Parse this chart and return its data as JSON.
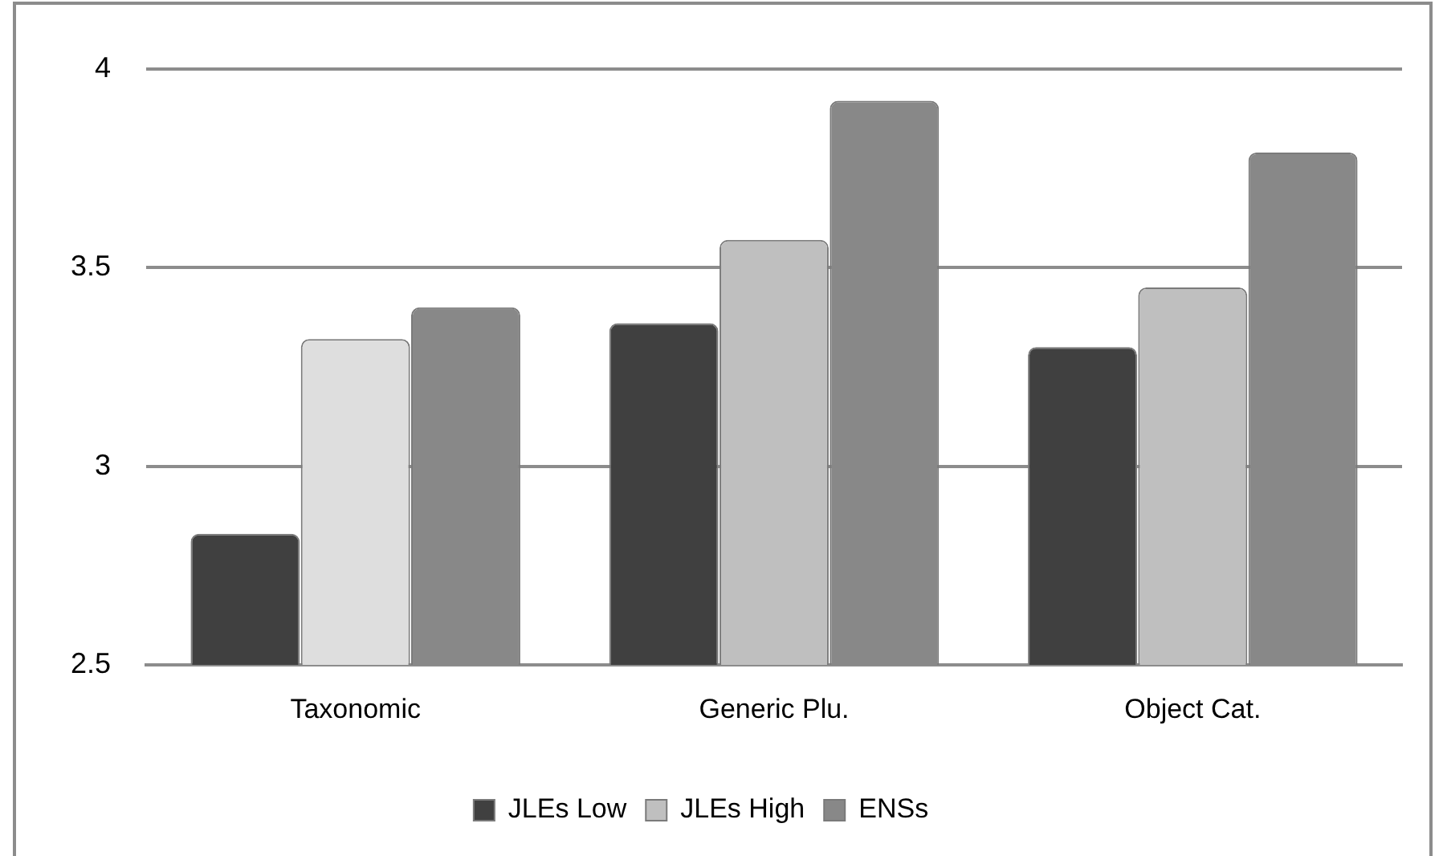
{
  "chart_data": {
    "type": "bar",
    "categories": [
      "Taxonomic",
      "Generic Plu.",
      "Object Cat."
    ],
    "series": [
      {
        "name": "JLEs Low",
        "color": "#404040",
        "values": [
          2.83,
          3.36,
          3.3
        ]
      },
      {
        "name": "JLEs High",
        "color": "#bfbfbf",
        "colors": [
          "#dedede",
          "#bfbfbf",
          "#bfbfbf"
        ],
        "values": [
          3.32,
          3.57,
          3.45
        ]
      },
      {
        "name": "ENSs",
        "color": "#888888",
        "values": [
          3.4,
          3.92,
          3.79
        ]
      }
    ],
    "ylim": [
      2.5,
      4
    ],
    "yticks": [
      2.5,
      3,
      3.5,
      4
    ],
    "grid": "y",
    "legend": "bottom"
  }
}
